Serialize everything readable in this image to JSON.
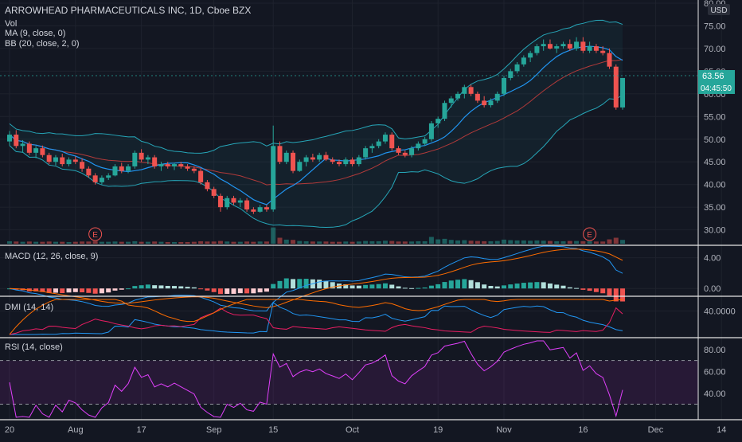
{
  "main": {
    "title": "ARROWHEAD PHARMACEUTICALS INC, 1D, Cboe BZX",
    "legend": [
      "Vol",
      "MA (9, close, 0)",
      "BB (20, close, 2, 0)"
    ],
    "currency": "USD",
    "price_label": "63.56",
    "countdown": "04:45:50",
    "earnings_marker": "E"
  },
  "colors": {
    "up": "#26a69a",
    "down": "#ef5350",
    "ma": "#2196f3",
    "bb_basis": "#b23a3a",
    "bb_band": "#26a6b8",
    "macd": "#2196f3",
    "signal": "#ff6d00",
    "dmi_plus": "#2196f3",
    "dmi_minus": "#e91e63",
    "adx": "#ff6d00",
    "rsi": "#9c27b0"
  },
  "chart_data": [
    {
      "type": "candlestick",
      "title": "ARROWHEAD PHARMACEUTICALS INC, 1D, Cboe BZX",
      "ylim": [
        28,
        80
      ],
      "yticks": [
        "80.00",
        "75.00",
        "70.00",
        "65.00",
        "60.00",
        "55.00",
        "50.00",
        "45.00",
        "40.00",
        "35.00",
        "30.00"
      ],
      "xticks": [
        {
          "label": "20",
          "i": 0
        },
        {
          "label": "Aug",
          "i": 10
        },
        {
          "label": "17",
          "i": 20
        },
        {
          "label": "Sep",
          "i": 31
        },
        {
          "label": "15",
          "i": 40
        },
        {
          "label": "Oct",
          "i": 52
        },
        {
          "label": "19",
          "i": 65
        },
        {
          "label": "Nov",
          "i": 75
        },
        {
          "label": "16",
          "i": 87
        },
        {
          "label": "Dec",
          "i": 98
        },
        {
          "label": "14",
          "i": 108
        }
      ],
      "ohlc": [
        [
          49.5,
          51.8,
          48.6,
          51.0
        ],
        [
          51.0,
          52.0,
          48.0,
          48.5
        ],
        [
          48.5,
          49.8,
          47.0,
          49.0
        ],
        [
          49.0,
          49.5,
          46.5,
          47.0
        ],
        [
          47.0,
          48.5,
          45.8,
          48.0
        ],
        [
          48.0,
          48.6,
          46.0,
          46.5
        ],
        [
          46.5,
          47.0,
          44.5,
          45.0
        ],
        [
          45.0,
          46.5,
          44.2,
          46.0
        ],
        [
          46.0,
          46.8,
          44.0,
          44.5
        ],
        [
          44.5,
          46.0,
          44.0,
          45.5
        ],
        [
          45.5,
          46.2,
          44.5,
          45.0
        ],
        [
          45.0,
          45.8,
          42.8,
          43.5
        ],
        [
          43.5,
          44.0,
          41.5,
          42.0
        ],
        [
          42.0,
          42.5,
          40.0,
          40.5
        ],
        [
          40.5,
          42.0,
          40.0,
          41.5
        ],
        [
          41.5,
          42.5,
          41.0,
          42.0
        ],
        [
          42.0,
          44.5,
          41.8,
          44.0
        ],
        [
          44.0,
          44.8,
          42.5,
          43.0
        ],
        [
          43.0,
          44.5,
          42.5,
          44.0
        ],
        [
          44.0,
          47.5,
          43.5,
          47.0
        ],
        [
          47.0,
          47.8,
          45.0,
          45.5
        ],
        [
          45.5,
          46.5,
          44.5,
          46.0
        ],
        [
          46.0,
          46.5,
          43.5,
          44.0
        ],
        [
          44.0,
          45.0,
          43.0,
          44.5
        ],
        [
          44.5,
          45.0,
          43.5,
          44.0
        ],
        [
          44.0,
          44.8,
          43.2,
          44.5
        ],
        [
          44.5,
          45.0,
          43.5,
          44.0
        ],
        [
          44.0,
          44.5,
          43.0,
          43.5
        ],
        [
          43.5,
          44.0,
          42.5,
          43.0
        ],
        [
          43.0,
          43.5,
          40.0,
          40.5
        ],
        [
          40.5,
          41.0,
          38.5,
          39.0
        ],
        [
          39.0,
          39.5,
          37.0,
          37.5
        ],
        [
          37.5,
          38.0,
          34.0,
          35.0
        ],
        [
          35.0,
          37.5,
          34.5,
          37.0
        ],
        [
          37.0,
          37.5,
          35.5,
          36.0
        ],
        [
          36.0,
          37.0,
          35.0,
          36.5
        ],
        [
          36.5,
          37.0,
          34.0,
          34.5
        ],
        [
          34.5,
          35.0,
          33.5,
          34.0
        ],
        [
          34.0,
          35.5,
          33.8,
          35.0
        ],
        [
          35.0,
          35.5,
          34.0,
          34.5
        ],
        [
          34.5,
          53.0,
          34.0,
          48.5
        ],
        [
          48.5,
          49.5,
          44.5,
          45.0
        ],
        [
          45.0,
          47.5,
          44.5,
          47.0
        ],
        [
          47.0,
          47.5,
          42.5,
          43.0
        ],
        [
          43.0,
          45.5,
          42.8,
          45.0
        ],
        [
          45.0,
          46.5,
          44.0,
          46.0
        ],
        [
          46.0,
          46.8,
          45.0,
          45.5
        ],
        [
          45.5,
          47.0,
          45.0,
          46.5
        ],
        [
          46.5,
          47.2,
          45.2,
          45.5
        ],
        [
          45.5,
          46.0,
          44.5,
          45.0
        ],
        [
          45.0,
          45.5,
          44.0,
          44.5
        ],
        [
          44.5,
          46.0,
          44.0,
          45.5
        ],
        [
          45.5,
          46.0,
          44.0,
          44.5
        ],
        [
          44.5,
          46.5,
          44.0,
          46.0
        ],
        [
          46.0,
          48.5,
          45.5,
          48.0
        ],
        [
          48.0,
          49.0,
          47.0,
          48.5
        ],
        [
          48.5,
          50.0,
          48.0,
          49.5
        ],
        [
          49.5,
          51.5,
          49.0,
          51.0
        ],
        [
          51.0,
          51.5,
          47.5,
          48.0
        ],
        [
          48.0,
          48.5,
          46.5,
          47.0
        ],
        [
          47.0,
          47.5,
          46.0,
          46.5
        ],
        [
          46.5,
          48.5,
          46.0,
          48.0
        ],
        [
          48.0,
          49.5,
          47.5,
          49.0
        ],
        [
          49.0,
          50.5,
          48.5,
          50.0
        ],
        [
          50.0,
          54.0,
          49.5,
          53.5
        ],
        [
          53.5,
          55.0,
          52.5,
          54.5
        ],
        [
          54.5,
          58.5,
          54.0,
          58.0
        ],
        [
          58.0,
          59.5,
          57.0,
          59.0
        ],
        [
          59.0,
          60.5,
          58.5,
          60.0
        ],
        [
          60.0,
          62.0,
          59.0,
          61.5
        ],
        [
          61.5,
          62.0,
          59.5,
          60.0
        ],
        [
          60.0,
          60.5,
          58.0,
          58.5
        ],
        [
          58.5,
          59.5,
          57.0,
          57.5
        ],
        [
          57.5,
          59.0,
          57.0,
          58.5
        ],
        [
          58.5,
          60.5,
          58.0,
          60.0
        ],
        [
          60.0,
          64.0,
          59.5,
          63.5
        ],
        [
          63.5,
          65.5,
          63.0,
          65.0
        ],
        [
          65.0,
          67.0,
          64.5,
          66.5
        ],
        [
          66.5,
          68.5,
          66.0,
          68.0
        ],
        [
          68.0,
          69.5,
          67.0,
          69.0
        ],
        [
          69.0,
          71.0,
          68.5,
          70.5
        ],
        [
          70.5,
          72.0,
          69.5,
          71.0
        ],
        [
          71.0,
          72.0,
          69.8,
          70.0
        ],
        [
          70.0,
          71.0,
          69.0,
          70.5
        ],
        [
          70.5,
          71.5,
          70.0,
          71.0
        ],
        [
          71.0,
          72.0,
          69.5,
          70.0
        ],
        [
          70.0,
          72.5,
          69.5,
          71.5
        ],
        [
          71.5,
          72.5,
          69.0,
          69.5
        ],
        [
          69.5,
          71.5,
          69.0,
          70.5
        ],
        [
          70.5,
          71.0,
          69.0,
          69.5
        ],
        [
          69.5,
          70.5,
          68.5,
          69.0
        ],
        [
          69.0,
          70.0,
          65.5,
          66.0
        ],
        [
          66.0,
          66.5,
          56.5,
          57.0
        ],
        [
          57.0,
          63.5,
          56.5,
          63.5
        ]
      ],
      "volume": [
        0.9,
        0.8,
        0.7,
        0.8,
        0.7,
        0.7,
        0.8,
        0.7,
        0.7,
        0.6,
        0.7,
        0.8,
        0.8,
        0.9,
        0.7,
        0.7,
        0.8,
        0.7,
        0.7,
        0.9,
        0.7,
        0.7,
        0.8,
        0.7,
        0.6,
        0.6,
        0.6,
        0.6,
        0.7,
        0.9,
        0.8,
        0.8,
        1.0,
        0.8,
        0.7,
        0.7,
        0.8,
        0.7,
        0.8,
        0.8,
        6.0,
        2.2,
        1.5,
        1.4,
        1.0,
        0.9,
        0.8,
        0.8,
        0.8,
        0.7,
        0.7,
        0.8,
        0.7,
        0.8,
        1.0,
        0.9,
        0.9,
        1.1,
        1.0,
        0.8,
        0.8,
        0.8,
        0.9,
        0.9,
        2.5,
        1.6,
        1.8,
        1.4,
        1.2,
        1.3,
        1.1,
        1.0,
        0.9,
        0.9,
        1.0,
        1.5,
        1.3,
        1.2,
        1.2,
        1.1,
        1.2,
        1.1,
        1.0,
        0.9,
        0.9,
        1.0,
        1.0,
        0.9,
        0.9,
        0.8,
        0.8,
        1.6,
        2.2,
        1.4
      ],
      "earnings_at": [
        13,
        88
      ]
    },
    {
      "type": "macd",
      "title": "MACD (12, 26, close, 9)",
      "ylim": [
        -0.6,
        5.2
      ],
      "yticks": [
        "4.00",
        "0.00"
      ]
    },
    {
      "type": "dmi",
      "title": "DMI (14, 14)",
      "ylim": [
        0,
        60
      ],
      "yticks": [
        "40.0000"
      ]
    },
    {
      "type": "rsi",
      "title": "RSI (14, close)",
      "ylim": [
        18,
        88
      ],
      "yticks": [
        "80.00",
        "60.00",
        "40.00"
      ],
      "bands": [
        70,
        30
      ]
    }
  ]
}
